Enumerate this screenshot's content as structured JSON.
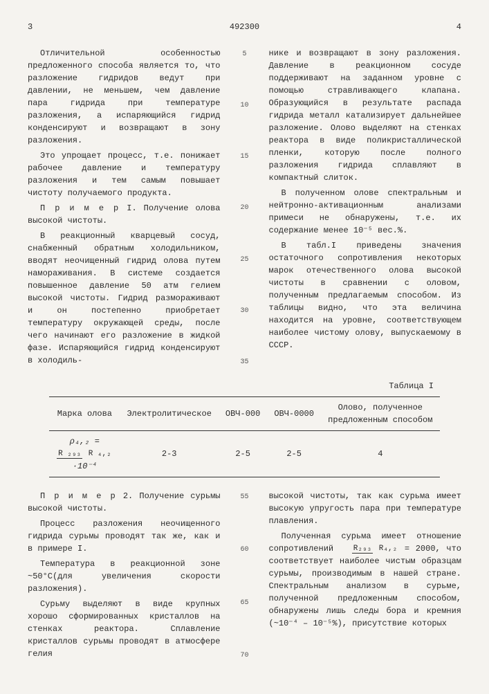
{
  "header": {
    "page_left": "3",
    "doc_number": "492300",
    "page_right": "4"
  },
  "line_markers_top": [
    "5",
    "10",
    "15",
    "20",
    "25",
    "30",
    "35"
  ],
  "line_markers_bottom": [
    "55",
    "60",
    "65",
    "70"
  ],
  "col1_top": {
    "p1": "Отличительной особенностью предложенного способа является то, что разложение гидридов ведут при давлении, не меньшем, чем давление пара гидрида при температуре разложения, а испаряющийся гидрид конденсируют и возвращают в зону разложения.",
    "p2": "Это упрощает процесс, т.е. понижает рабочее давление и температуру разложения и тем самым повышает чистоту получаемого продукта.",
    "p3a": "П р и м е р I. Получение олова высокой чистоты.",
    "p4": "В реакционный кварцевый сосуд, снабженный обратным холодильником, вводят неочищенный гидрид олова путем намораживания. В системе создается повышенное давление 50 атм гелием высокой чистоты. Гидрид размораживают и он постепенно приобретает температуру окружающей среды, после чего начинают его разложение в жидкой фазе. Испаряющийся гидрид конденсируют в холодиль-"
  },
  "col2_top": {
    "p1": "нике и возвращают в зону разложения. Давление в реакционном сосуде поддерживают на заданном уровне с помощью стравливающего клапана. Образующийся в результате распада гидрида металл катализирует дальнейшее разложение. Олово выделяют на стенках реактора в виде поликристаллической пленки, которую после полного разложения гидрида сплавляют в компактный слиток.",
    "p2": "В полученном олове спектральным и нейтронно-активационным анализами примеси не обнаружены, т.е. их содержание менее 10⁻⁵ вес.%.",
    "p3": "В табл.I приведены значения остаточного сопротивления некоторых марок отечественного олова высокой чистоты в сравнении с оловом, полученным предлагаемым способом. Из таблицы видно, что эта величина находится на уровне, соответствующем наиболее чистому олову, выпускаемому в СССР."
  },
  "table": {
    "caption": "Таблица I",
    "headers": [
      "Марка олова",
      "Электролитическое",
      "ОВЧ-000",
      "ОВЧ-0000",
      "Олово, полученное предложенным способом"
    ],
    "row_label_prefix": "ρ₄,₂ =",
    "row_label_suffix": "·10⁻⁴",
    "frac_num": "R ₂₉₃",
    "frac_den": "R ₄,₂",
    "cells": [
      "2-3",
      "2-5",
      "2-5",
      "4"
    ]
  },
  "col1_bottom": {
    "p1a": "П р и м е р  2. Получение сурьмы высокой чистоты.",
    "p2": "Процесс разложения неочищенного гидрида сурьмы проводят так же, как и в примере I.",
    "p3": "Температура в реакционной зоне ~50°С(для увеличения скорости разложения).",
    "p4": "Сурьму выделяют в виде крупных хорошо сформированных кристаллов на стенках реактора. Сплавление кристаллов сурьмы проводят в атмосфере гелия"
  },
  "col2_bottom": {
    "p1": "высокой чистоты, так как сурьма имеет высокую упругость пара при температуре плавления.",
    "p2a": "Полученная сурьма имеет отношение сопротивлений ",
    "p2_frac_num": "R₂₉₃",
    "p2_frac_den": "R₄,₂",
    "p2b": " = 2000, что соответствует наиболее чистым образцам сурьмы, производимым в нашей стране. Спектральным анализом в сурьме, полученной предложенным способом, обнаружены лишь следы бора и кремния (~10⁻⁴ – 10⁻⁵%), присутствие которых"
  }
}
